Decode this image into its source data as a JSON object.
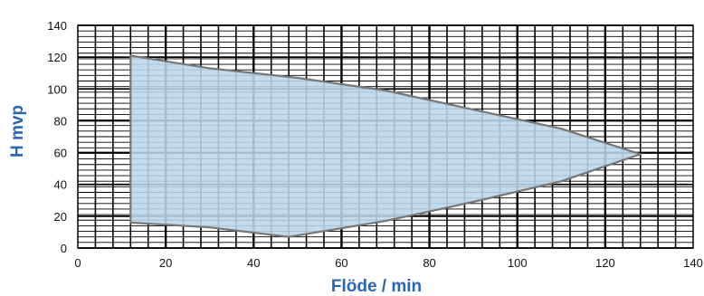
{
  "chart_data": {
    "type": "area",
    "xlabel": "Flöde / min",
    "ylabel": "H mvp",
    "xlim": [
      0,
      140
    ],
    "ylim": [
      0,
      140
    ],
    "x_ticks": [
      0,
      20,
      40,
      60,
      80,
      100,
      120,
      140
    ],
    "y_ticks": [
      0,
      20,
      40,
      60,
      80,
      100,
      120,
      140
    ],
    "x_tick_labels": [
      "0",
      "20",
      "40",
      "60",
      "80",
      "100",
      "120",
      "140"
    ],
    "y_tick_labels": [
      "0",
      "20",
      "40",
      "60",
      "80",
      "100",
      "120",
      "140"
    ],
    "grid": true,
    "region": {
      "upper_boundary": [
        {
          "x": 12,
          "y": 121
        },
        {
          "x": 30,
          "y": 113
        },
        {
          "x": 50,
          "y": 107
        },
        {
          "x": 70,
          "y": 99
        },
        {
          "x": 90,
          "y": 87
        },
        {
          "x": 110,
          "y": 75
        },
        {
          "x": 128,
          "y": 59
        }
      ],
      "lower_boundary": [
        {
          "x": 12,
          "y": 16
        },
        {
          "x": 30,
          "y": 13
        },
        {
          "x": 48,
          "y": 7
        },
        {
          "x": 70,
          "y": 17
        },
        {
          "x": 90,
          "y": 29
        },
        {
          "x": 110,
          "y": 42
        },
        {
          "x": 128,
          "y": 59
        }
      ]
    },
    "colors": {
      "fill": "#bcd6ec",
      "outline": "#777777",
      "grid": "#000000",
      "axis_title": "#2a66b4"
    }
  }
}
